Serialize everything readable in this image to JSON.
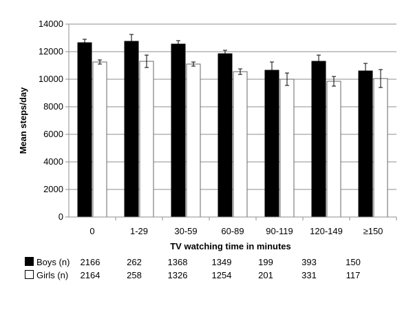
{
  "chart_data": {
    "type": "bar",
    "title": "",
    "xlabel": "TV watching time in minutes",
    "ylabel": "Mean steps/day",
    "ylim": [
      0,
      14000
    ],
    "yticks": [
      "0",
      "2000",
      "4000",
      "6000",
      "8000",
      "10000",
      "12000",
      "14000"
    ],
    "categories": [
      "0",
      "1-29",
      "30-59",
      "60-89",
      "90-119",
      "120-149",
      "≥150"
    ],
    "grid": true,
    "series": [
      {
        "name": "Boys",
        "color": "#000000",
        "values": [
          12650,
          12750,
          12550,
          11850,
          10650,
          11300,
          10600
        ],
        "error": [
          250,
          500,
          250,
          250,
          600,
          450,
          550
        ]
      },
      {
        "name": "Girls",
        "color": "#ffffff",
        "values": [
          11250,
          11300,
          11100,
          10550,
          10000,
          9850,
          10050
        ],
        "error": [
          150,
          450,
          150,
          200,
          450,
          350,
          650
        ]
      }
    ]
  },
  "counts_table": {
    "rows": [
      {
        "label": "Boys (n)",
        "swatch": "#000000",
        "values": [
          "2166",
          "262",
          "1368",
          "1349",
          "199",
          "393",
          "150"
        ]
      },
      {
        "label": "Girls (n)",
        "swatch": "#ffffff",
        "values": [
          "2164",
          "258",
          "1326",
          "1254",
          "201",
          "331",
          "117"
        ]
      }
    ]
  }
}
